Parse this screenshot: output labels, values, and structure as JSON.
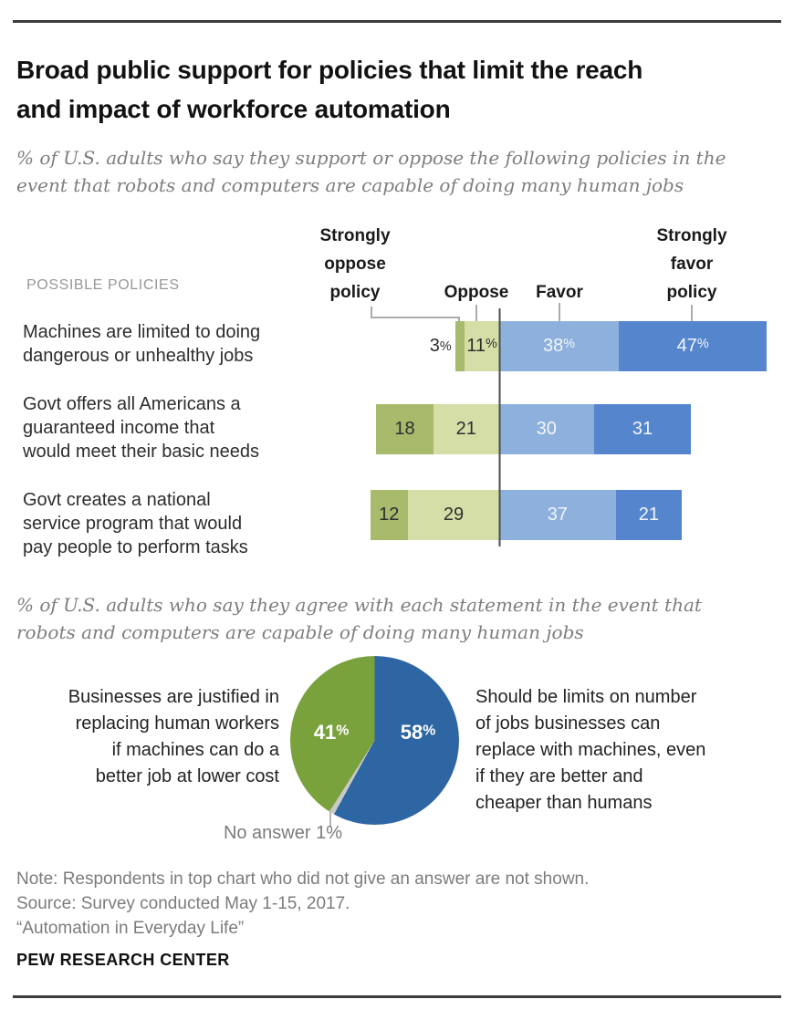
{
  "header": {
    "title": [
      "Broad public support for policies that limit the reach",
      "and impact of workforce automation"
    ],
    "subtitle": [
      "% of U.S. adults who say they support or oppose the following policies in the",
      "event that robots and computers are capable of doing many human jobs"
    ]
  },
  "chart_data": [
    {
      "type": "bar",
      "orientation": "horizontal",
      "stacked": true,
      "section_label": "POSSIBLE POLICIES",
      "value_unit": "% of U.S. adults",
      "series": [
        {
          "name": "Strongly oppose policy",
          "color": "#a8ba6c",
          "values": [
            3,
            18,
            12
          ]
        },
        {
          "name": "Oppose",
          "color": "#d5dea6",
          "values": [
            11,
            21,
            29
          ]
        },
        {
          "name": "Favor",
          "color": "#8db1dc",
          "values": [
            38,
            30,
            37
          ]
        },
        {
          "name": "Strongly favor policy",
          "color": "#5586cd",
          "values": [
            47,
            31,
            21
          ]
        }
      ],
      "rows": [
        {
          "label": [
            "Machines are limited to doing",
            "dangerous or unhealthy jobs"
          ],
          "values": [
            3,
            11,
            38,
            47
          ],
          "display": [
            "3%",
            "11%",
            "38%",
            "47%"
          ]
        },
        {
          "label": [
            "Govt offers all Americans a",
            "guaranteed income that",
            "would meet their basic needs"
          ],
          "values": [
            18,
            21,
            30,
            31
          ],
          "display": [
            "18",
            "21",
            "30",
            "31"
          ]
        },
        {
          "label": [
            "Govt creates a national",
            "service program that would",
            "pay people to perform tasks"
          ],
          "values": [
            12,
            29,
            37,
            21
          ],
          "display": [
            "12",
            "29",
            "37",
            "21"
          ]
        }
      ]
    },
    {
      "type": "pie",
      "subtitle": [
        "% of U.S. adults who say they agree with each statement in the event that",
        "robots and computers are capable of doing many human jobs"
      ],
      "slices": [
        {
          "name": "Should be limits on number of jobs businesses can replace with machines, even if they are better and cheaper than humans",
          "value": 58,
          "display": "58%",
          "color": "#2e66a3"
        },
        {
          "name": "No answer",
          "value": 1,
          "display": "No answer 1%",
          "color": "#c9c9c5"
        },
        {
          "name": "Businesses are justified in replacing human workers if machines can do a better job at lower cost",
          "value": 41,
          "display": "41%",
          "color": "#7aa23c"
        }
      ],
      "left_label": [
        "Businesses are justified in",
        "replacing human workers",
        "if machines can do a",
        "better job at lower cost"
      ],
      "right_label": [
        "Should be limits on number",
        "of jobs businesses can",
        "replace with machines, even",
        "if they are better and",
        "cheaper than humans"
      ],
      "no_answer_label": "No answer 1%"
    }
  ],
  "footer": {
    "note": "Note: Respondents in top chart who did not give an answer are not shown.",
    "source": "Source: Survey conducted May 1-15, 2017.",
    "attribution": "“Automation in Everyday Life”",
    "brand": "PEW RESEARCH CENTER"
  }
}
